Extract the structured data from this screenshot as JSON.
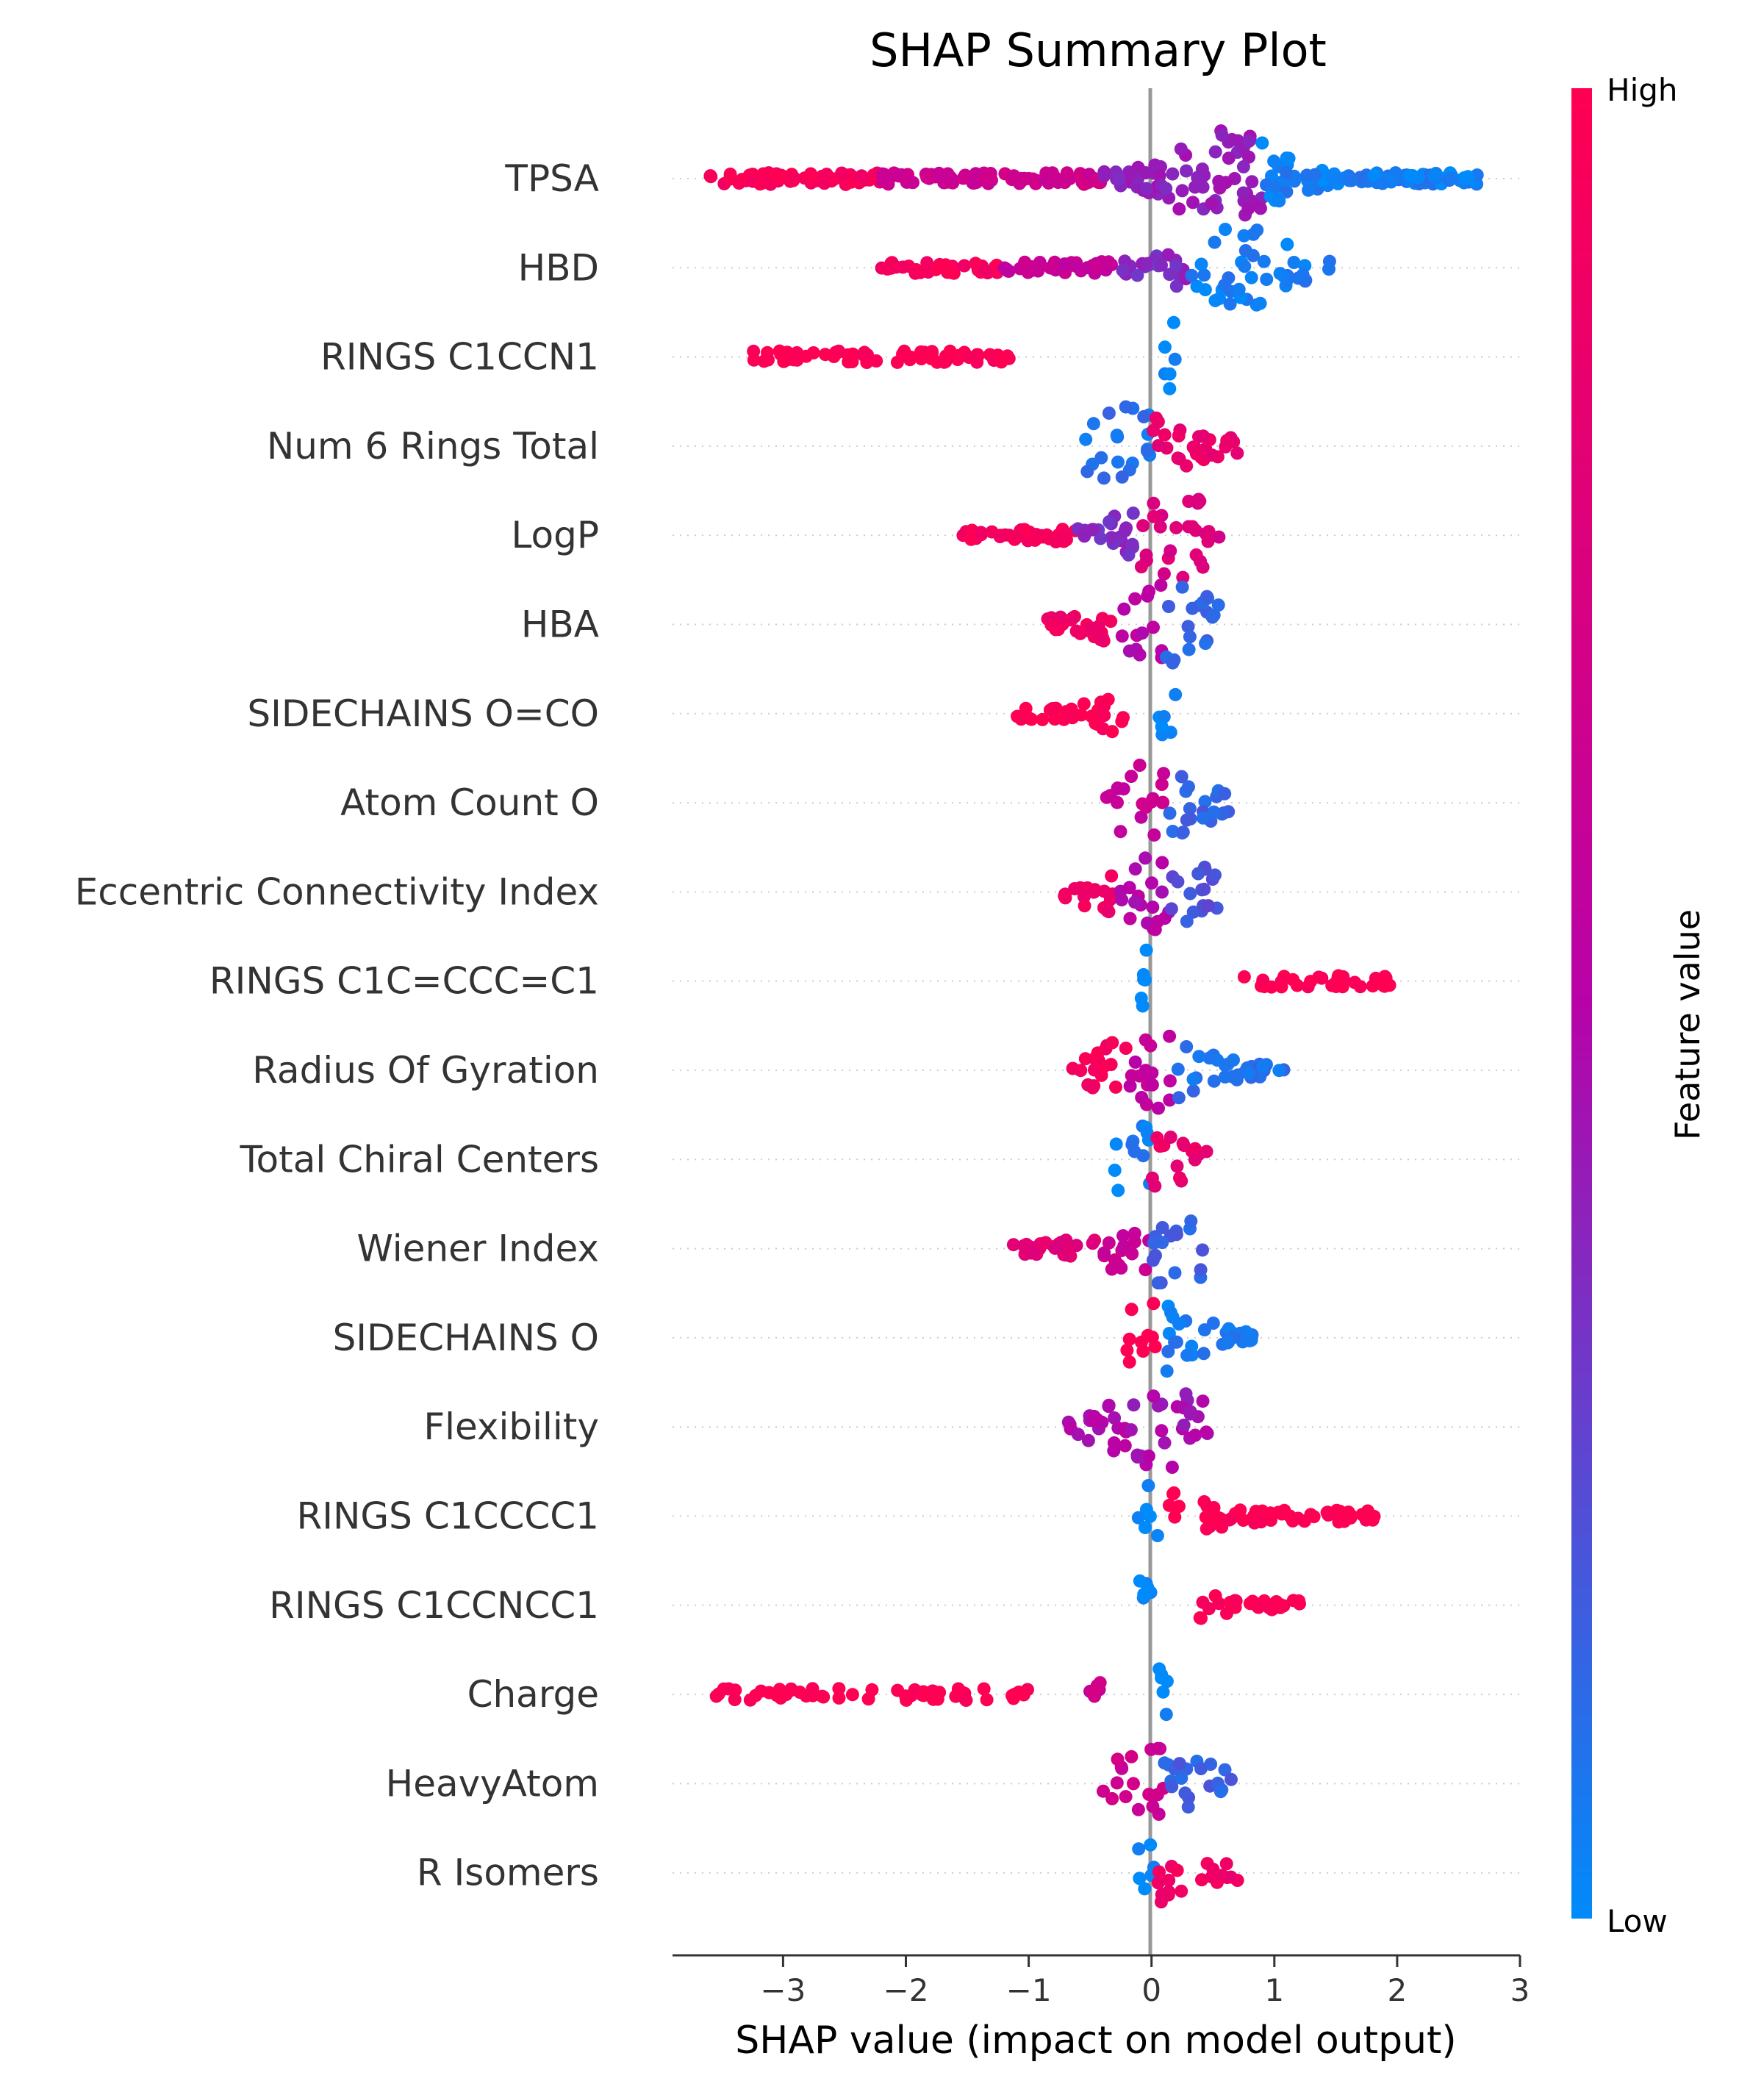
{
  "chart_data": {
    "type": "scatter",
    "subtype": "shap-beeswarm",
    "title": "SHAP Summary Plot",
    "xlabel": "SHAP value (impact on model output)",
    "ylabel": "",
    "xlim": [
      -3.9,
      3.0
    ],
    "xticks": [
      {
        "value": -3,
        "label": "−3"
      },
      {
        "value": -2,
        "label": "−2"
      },
      {
        "value": -1,
        "label": "−1"
      },
      {
        "value": 0,
        "label": "0"
      },
      {
        "value": 1,
        "label": "1"
      },
      {
        "value": 2,
        "label": "2"
      },
      {
        "value": 3,
        "label": "3"
      }
    ],
    "grid": "dotted horizontal row guides",
    "zero_line": 0,
    "colorbar": {
      "label": "Feature value",
      "high_label": "High",
      "low_label": "Low",
      "high_color": "#ff0052",
      "mid_color": "#b802a8",
      "low_color": "#008bfb"
    },
    "features": [
      {
        "name": "TPSA",
        "min": -3.6,
        "max": 2.7,
        "peak": 0.6,
        "spread": 1.0,
        "density": 1.0,
        "segments": [
          {
            "from": -3.6,
            "to": -2.2,
            "c": 0.95
          },
          {
            "from": -2.2,
            "to": -0.4,
            "c": 0.65
          },
          {
            "from": -0.4,
            "to": 0.9,
            "c": 0.4
          },
          {
            "from": 0.9,
            "to": 2.7,
            "c": 0.05
          }
        ]
      },
      {
        "name": "HBD",
        "min": -2.2,
        "max": 1.45,
        "peak": 0.7,
        "spread": 0.8,
        "density": 0.7,
        "segments": [
          {
            "from": -2.2,
            "to": -1.2,
            "c": 0.95
          },
          {
            "from": -1.2,
            "to": -0.3,
            "c": 0.6
          },
          {
            "from": -0.3,
            "to": 0.3,
            "c": 0.35
          },
          {
            "from": 0.3,
            "to": 1.45,
            "c": 0.05
          }
        ]
      },
      {
        "name": "RINGS C1CCN1",
        "min": -3.25,
        "max": -1.15,
        "peak": 0.15,
        "spread": 0.7,
        "density": 0.6,
        "segments": [
          {
            "from": -3.25,
            "to": -1.15,
            "c": 1.0
          },
          {
            "from": 0.05,
            "to": 0.2,
            "c": 0.0
          }
        ]
      },
      {
        "name": "Num 6 Rings Total",
        "min": -0.55,
        "max": 0.75,
        "peak": -0.15,
        "spread": 0.8,
        "density": 0.7,
        "segments": [
          {
            "from": -0.55,
            "to": 0.0,
            "c": 0.1
          },
          {
            "from": 0.0,
            "to": 0.75,
            "c": 0.85
          }
        ]
      },
      {
        "name": "LogP",
        "min": -1.55,
        "max": 0.55,
        "peak": 0.2,
        "spread": 0.85,
        "density": 0.75,
        "segments": [
          {
            "from": -1.55,
            "to": -0.6,
            "c": 0.95
          },
          {
            "from": -0.6,
            "to": -0.1,
            "c": 0.35
          },
          {
            "from": -0.1,
            "to": 0.55,
            "c": 0.75
          }
        ]
      },
      {
        "name": "HBA",
        "min": -0.85,
        "max": 0.55,
        "peak": 0.15,
        "spread": 0.8,
        "density": 0.75,
        "segments": [
          {
            "from": -0.85,
            "to": -0.25,
            "c": 0.9
          },
          {
            "from": -0.25,
            "to": 0.1,
            "c": 0.5
          },
          {
            "from": 0.1,
            "to": 0.55,
            "c": 0.15
          }
        ]
      },
      {
        "name": "SIDECHAINS O=CO",
        "min": -1.1,
        "max": -0.2,
        "peak": 0.1,
        "spread": 0.6,
        "density": 0.6,
        "segments": [
          {
            "from": -1.1,
            "to": -0.2,
            "c": 1.0
          },
          {
            "from": 0.05,
            "to": 0.2,
            "c": 0.0
          }
        ]
      },
      {
        "name": "Atom Count O",
        "min": -0.4,
        "max": 0.65,
        "peak": 0.0,
        "spread": 0.75,
        "density": 0.7,
        "segments": [
          {
            "from": -0.4,
            "to": 0.1,
            "c": 0.6
          },
          {
            "from": 0.1,
            "to": 0.65,
            "c": 0.15
          }
        ]
      },
      {
        "name": "Eccentric Connectivity Index",
        "min": -0.75,
        "max": 0.55,
        "peak": 0.05,
        "spread": 0.8,
        "density": 0.75,
        "segments": [
          {
            "from": -0.75,
            "to": -0.3,
            "c": 0.9
          },
          {
            "from": -0.3,
            "to": 0.15,
            "c": 0.5
          },
          {
            "from": 0.15,
            "to": 0.55,
            "c": 0.2
          }
        ]
      },
      {
        "name": "RINGS C1C=CCC=C1",
        "min": 0.75,
        "max": 1.95,
        "peak": -0.05,
        "spread": 0.6,
        "density": 0.6,
        "segments": [
          {
            "from": -0.1,
            "to": 0.0,
            "c": 0.0
          },
          {
            "from": 0.75,
            "to": 1.95,
            "c": 1.0
          }
        ]
      },
      {
        "name": "Radius Of Gyration",
        "min": -0.65,
        "max": 1.1,
        "peak": 0.0,
        "spread": 0.75,
        "density": 0.75,
        "segments": [
          {
            "from": -0.65,
            "to": -0.2,
            "c": 0.95
          },
          {
            "from": -0.2,
            "to": 0.2,
            "c": 0.55
          },
          {
            "from": 0.2,
            "to": 1.1,
            "c": 0.1
          }
        ]
      },
      {
        "name": "Total Chiral Centers",
        "min": -0.3,
        "max": 0.45,
        "peak": -0.15,
        "spread": 0.7,
        "density": 0.7,
        "segments": [
          {
            "from": -0.3,
            "to": 0.0,
            "c": 0.05
          },
          {
            "from": 0.0,
            "to": 0.45,
            "c": 0.85
          }
        ]
      },
      {
        "name": "Wiener Index",
        "min": -1.15,
        "max": 0.45,
        "peak": 0.1,
        "spread": 0.75,
        "density": 0.7,
        "segments": [
          {
            "from": -1.15,
            "to": -0.4,
            "c": 0.8
          },
          {
            "from": -0.4,
            "to": 0.0,
            "c": 0.6
          },
          {
            "from": 0.0,
            "to": 0.45,
            "c": 0.15
          }
        ]
      },
      {
        "name": "SIDECHAINS O",
        "min": -0.2,
        "max": 0.85,
        "peak": -0.05,
        "spread": 0.75,
        "density": 0.7,
        "segments": [
          {
            "from": -0.2,
            "to": 0.05,
            "c": 1.0
          },
          {
            "from": 0.05,
            "to": 0.85,
            "c": 0.05
          }
        ]
      },
      {
        "name": "Flexibility",
        "min": -0.75,
        "max": 0.5,
        "peak": 0.1,
        "spread": 0.8,
        "density": 0.7,
        "segments": [
          {
            "from": -0.75,
            "to": -0.2,
            "c": 0.5
          },
          {
            "from": -0.2,
            "to": 0.5,
            "c": 0.45
          }
        ]
      },
      {
        "name": "RINGS C1CCCC1",
        "min": 0.1,
        "max": 1.85,
        "peak": -0.05,
        "spread": 0.6,
        "density": 0.55,
        "segments": [
          {
            "from": -0.15,
            "to": 0.05,
            "c": 0.0
          },
          {
            "from": 0.1,
            "to": 1.85,
            "c": 1.0
          }
        ]
      },
      {
        "name": "RINGS C1CCNCC1",
        "min": 0.35,
        "max": 1.25,
        "peak": -0.05,
        "spread": 0.6,
        "density": 0.55,
        "segments": [
          {
            "from": -0.1,
            "to": 0.0,
            "c": 0.0
          },
          {
            "from": 0.35,
            "to": 1.25,
            "c": 1.0
          }
        ]
      },
      {
        "name": "Charge",
        "min": -3.55,
        "max": -0.35,
        "peak": 0.1,
        "spread": 0.55,
        "density": 0.4,
        "segments": [
          {
            "from": -3.55,
            "to": -1.0,
            "c": 1.0
          },
          {
            "from": -0.55,
            "to": -0.35,
            "c": 0.65
          },
          {
            "from": 0.05,
            "to": 0.15,
            "c": 0.0
          }
        ]
      },
      {
        "name": "HeavyAtom",
        "min": -0.4,
        "max": 0.65,
        "peak": 0.05,
        "spread": 0.7,
        "density": 0.65,
        "segments": [
          {
            "from": -0.4,
            "to": 0.1,
            "c": 0.65
          },
          {
            "from": 0.1,
            "to": 0.65,
            "c": 0.15
          }
        ]
      },
      {
        "name": "R Isomers",
        "min": -0.15,
        "max": 0.7,
        "peak": -0.05,
        "spread": 0.6,
        "density": 0.55,
        "segments": [
          {
            "from": -0.15,
            "to": 0.05,
            "c": 0.0
          },
          {
            "from": 0.05,
            "to": 0.7,
            "c": 0.9
          }
        ]
      }
    ]
  }
}
